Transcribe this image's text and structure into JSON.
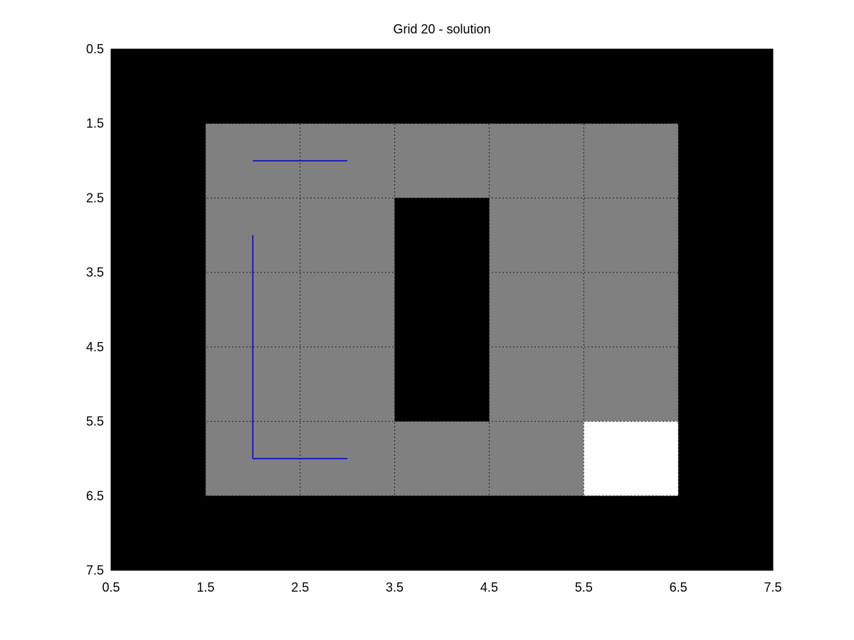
{
  "chart_data": {
    "type": "heatmap",
    "title": "Grid 20 - solution",
    "xlabel": "",
    "ylabel": "",
    "xlim": [
      0.5,
      7.5
    ],
    "ylim": [
      0.5,
      7.5
    ],
    "y_axis_reversed": true,
    "xticks": [
      "0.5",
      "1.5",
      "2.5",
      "3.5",
      "4.5",
      "5.5",
      "6.5",
      "7.5"
    ],
    "yticks": [
      "0.5",
      "1.5",
      "2.5",
      "3.5",
      "4.5",
      "5.5",
      "6.5",
      "7.5"
    ],
    "grid": true,
    "grid_style": "dotted",
    "colors": {
      "0": "#000000",
      "1": "#808080",
      "2": "#ffffff",
      "path": "#0000cc"
    },
    "cells": [
      [
        0,
        0,
        0,
        0,
        0,
        0,
        0
      ],
      [
        0,
        1,
        1,
        1,
        1,
        1,
        0
      ],
      [
        0,
        1,
        1,
        0,
        1,
        1,
        0
      ],
      [
        0,
        1,
        1,
        0,
        1,
        1,
        0
      ],
      [
        0,
        1,
        1,
        0,
        1,
        1,
        0
      ],
      [
        0,
        1,
        1,
        1,
        1,
        2,
        0
      ],
      [
        0,
        0,
        0,
        0,
        0,
        0,
        0
      ]
    ],
    "path_segments": [
      {
        "x": [
          2,
          3
        ],
        "y": [
          2,
          2
        ]
      },
      {
        "x": [
          2,
          2,
          3
        ],
        "y": [
          3,
          6,
          6
        ]
      }
    ]
  }
}
